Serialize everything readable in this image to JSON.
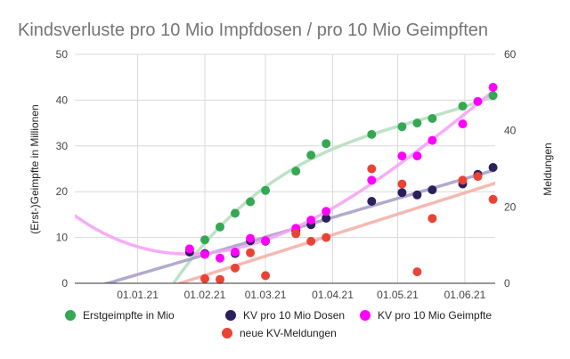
{
  "chart_data": {
    "type": "scatter",
    "title": "Kindsverluste pro 10 Mio Impfdosen / pro 10 Mio Geimpften",
    "ylabel_left": "(Erst-)Geimpfte in Millionen",
    "ylabel_right": "Meldungen",
    "ylim_left": [
      0,
      50
    ],
    "ylim_right": [
      0,
      60
    ],
    "yticks_left": [
      "0",
      "10",
      "20",
      "30",
      "40",
      "50"
    ],
    "yticks_right": [
      "0",
      "20",
      "40",
      "60"
    ],
    "xlim": [
      "2020-12-03",
      "2021-06-15"
    ],
    "xticks": [
      {
        "date": "2021-01-01",
        "label": "01.01.21"
      },
      {
        "date": "2021-02-01",
        "label": "01.02.21"
      },
      {
        "date": "2021-03-01",
        "label": "01.03.21"
      },
      {
        "date": "2021-04-01",
        "label": "01.04.21"
      },
      {
        "date": "2021-05-01",
        "label": "01.05.21"
      },
      {
        "date": "2021-06-01",
        "label": "01.06.21"
      }
    ],
    "grid": true,
    "legend_position": "bottom",
    "trendlines": true,
    "series": [
      {
        "name": "Erstgeimpfte in Mio",
        "axis": "left",
        "color": "#34a853",
        "trend_color": "#b7dfbf",
        "points": [
          [
            "2021-02-01",
            9.5
          ],
          [
            "2021-02-08",
            12.3
          ],
          [
            "2021-02-15",
            15.3
          ],
          [
            "2021-02-22",
            17.8
          ],
          [
            "2021-03-01",
            20.3
          ],
          [
            "2021-03-15",
            24.5
          ],
          [
            "2021-03-22",
            28.0
          ],
          [
            "2021-03-29",
            30.5
          ],
          [
            "2021-04-19",
            32.5
          ],
          [
            "2021-05-03",
            34.2
          ],
          [
            "2021-05-10",
            35.0
          ],
          [
            "2021-05-17",
            36.0
          ],
          [
            "2021-05-31",
            38.7
          ],
          [
            "2021-06-14",
            41.0
          ]
        ]
      },
      {
        "name": "KV pro 10 Mio Dosen",
        "axis": "left",
        "color": "#2b1f5c",
        "trend_color": "#aaa1c8",
        "points": [
          [
            "2021-01-25",
            6.8
          ],
          [
            "2021-02-01",
            6.5
          ],
          [
            "2021-02-15",
            6.5
          ],
          [
            "2021-02-22",
            9.3
          ],
          [
            "2021-03-01",
            9.2
          ],
          [
            "2021-03-15",
            11.5
          ],
          [
            "2021-03-22",
            12.8
          ],
          [
            "2021-03-29",
            14.2
          ],
          [
            "2021-04-19",
            17.9
          ],
          [
            "2021-05-03",
            19.8
          ],
          [
            "2021-05-10",
            19.3
          ],
          [
            "2021-05-17",
            20.4
          ],
          [
            "2021-05-31",
            21.7
          ],
          [
            "2021-06-07",
            23.8
          ],
          [
            "2021-06-14",
            25.3
          ]
        ]
      },
      {
        "name": "KV pro 10 Mio Geimpfte",
        "axis": "left",
        "color": "#ff00ff",
        "trend_color": "#f5a3f5",
        "points": [
          [
            "2021-01-25",
            7.5
          ],
          [
            "2021-02-01",
            6.3
          ],
          [
            "2021-02-08",
            5.5
          ],
          [
            "2021-02-15",
            6.8
          ],
          [
            "2021-02-22",
            9.8
          ],
          [
            "2021-03-01",
            9.3
          ],
          [
            "2021-03-15",
            12.0
          ],
          [
            "2021-03-22",
            13.8
          ],
          [
            "2021-03-29",
            15.7
          ],
          [
            "2021-04-19",
            22.5
          ],
          [
            "2021-05-03",
            27.8
          ],
          [
            "2021-05-10",
            27.8
          ],
          [
            "2021-05-17",
            31.2
          ],
          [
            "2021-05-31",
            34.8
          ],
          [
            "2021-06-07",
            39.7
          ],
          [
            "2021-06-14",
            42.8
          ]
        ]
      },
      {
        "name": "neue KV-Meldungen",
        "axis": "right",
        "color": "#ea4335",
        "trend_color": "#f4b1aa",
        "points": [
          [
            "2021-02-01",
            1.2
          ],
          [
            "2021-02-08",
            1.0
          ],
          [
            "2021-02-15",
            4.0
          ],
          [
            "2021-02-22",
            8.0
          ],
          [
            "2021-03-01",
            2.0
          ],
          [
            "2021-03-15",
            13.0
          ],
          [
            "2021-03-22",
            11.0
          ],
          [
            "2021-03-29",
            12.0
          ],
          [
            "2021-04-19",
            30.0
          ],
          [
            "2021-05-03",
            26.0
          ],
          [
            "2021-05-10",
            3.0
          ],
          [
            "2021-05-17",
            17.0
          ],
          [
            "2021-05-31",
            27.0
          ],
          [
            "2021-06-07",
            28.0
          ],
          [
            "2021-06-14",
            22.0
          ]
        ]
      }
    ]
  }
}
